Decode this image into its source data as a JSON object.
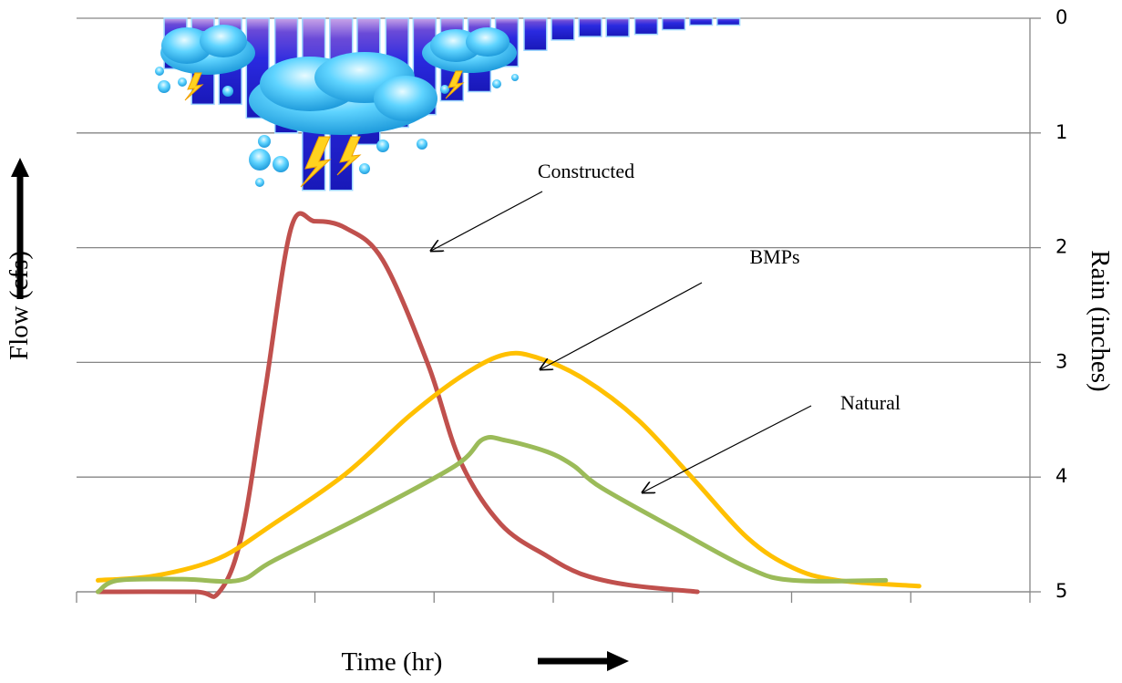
{
  "chart_data": {
    "type": "line",
    "ylabel": "Flow (cfs)",
    "y2label": "Rain (inches)",
    "xlabel": "Time (hr)",
    "xlim": [
      0,
      8
    ],
    "xticks": [
      0,
      1,
      2,
      3,
      4,
      5,
      6,
      7,
      8
    ],
    "y2lim": [
      5,
      0
    ],
    "y2ticks": [
      0,
      1,
      2,
      3,
      4,
      5
    ],
    "grid": true,
    "rain": {
      "type": "bar",
      "axis": "y2",
      "color": "#3434d8",
      "x": [
        0.83,
        1.06,
        1.29,
        1.52,
        1.76,
        1.99,
        2.22,
        2.45,
        2.69,
        2.92,
        3.15,
        3.38,
        3.61,
        3.85,
        4.08,
        4.31,
        4.54,
        4.78,
        5.01,
        5.24,
        5.47
      ],
      "values": [
        0.44,
        0.75,
        0.75,
        0.87,
        1.0,
        1.5,
        1.5,
        1.1,
        0.95,
        0.84,
        0.72,
        0.64,
        0.42,
        0.28,
        0.19,
        0.16,
        0.16,
        0.14,
        0.1,
        0.06,
        0.06
      ]
    },
    "series": [
      {
        "color": "#c0504d",
        "axis": "y2",
        "x": [
          0.18,
          0.99,
          1.19,
          1.38,
          1.58,
          1.8,
          2.0,
          2.26,
          2.57,
          2.95,
          3.22,
          3.56,
          3.95,
          4.25,
          4.63,
          5.21
        ],
        "values": [
          5.0,
          5.0,
          5.01,
          4.53,
          3.26,
          1.83,
          1.77,
          1.83,
          2.11,
          3.02,
          3.86,
          4.41,
          4.69,
          4.85,
          4.94,
          5.0
        ]
      },
      {
        "color": "#ffc000",
        "axis": "y2",
        "x": [
          0.18,
          0.66,
          1.19,
          1.65,
          2.26,
          2.8,
          3.26,
          3.6,
          3.87,
          4.25,
          4.71,
          5.17,
          5.63,
          6.01,
          6.39,
          7.07
        ],
        "values": [
          4.9,
          4.86,
          4.71,
          4.41,
          3.97,
          3.46,
          3.1,
          2.93,
          2.96,
          3.14,
          3.5,
          4.01,
          4.53,
          4.79,
          4.9,
          4.95
        ]
      },
      {
        "color": "#9bbb59",
        "axis": "y2",
        "x": [
          0.18,
          0.35,
          0.89,
          1.36,
          1.65,
          2.42,
          3.18,
          3.41,
          3.6,
          3.95,
          4.17,
          4.4,
          5.02,
          5.63,
          6.01,
          6.79
        ],
        "values": [
          5.0,
          4.9,
          4.89,
          4.9,
          4.73,
          4.33,
          3.9,
          3.67,
          3.68,
          3.78,
          3.9,
          4.09,
          4.45,
          4.79,
          4.9,
          4.9
        ]
      }
    ],
    "annotations": [
      {
        "text": "Constructed"
      },
      {
        "text": "BMPs"
      },
      {
        "text": "Natural"
      }
    ]
  }
}
